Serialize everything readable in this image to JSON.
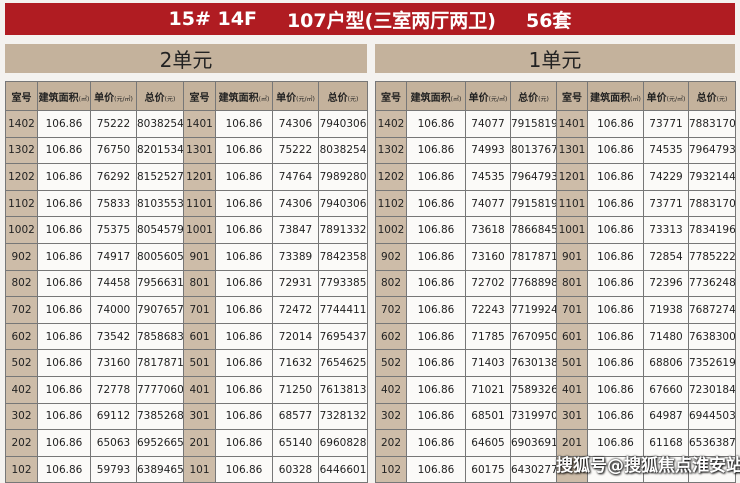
{
  "title": {
    "building": "15# 14F",
    "type": "107户型(三室两厅两卫)",
    "count": "56套"
  },
  "headers": [
    {
      "label": "室号",
      "unit": ""
    },
    {
      "label": "建筑面积",
      "unit": "(㎡)"
    },
    {
      "label": "单价",
      "unit": "(元/㎡)"
    },
    {
      "label": "总价",
      "unit": "(元)"
    }
  ],
  "units": [
    {
      "name": "2单元",
      "rows": [
        [
          "1402",
          "106.86",
          "75222",
          "8038254",
          "1401",
          "106.86",
          "74306",
          "7940306"
        ],
        [
          "1302",
          "106.86",
          "76750",
          "8201534",
          "1301",
          "106.86",
          "75222",
          "8038254"
        ],
        [
          "1202",
          "106.86",
          "76292",
          "8152527",
          "1201",
          "106.86",
          "74764",
          "7989280"
        ],
        [
          "1102",
          "106.86",
          "75833",
          "8103553",
          "1101",
          "106.86",
          "74306",
          "7940306"
        ],
        [
          "1002",
          "106.86",
          "75375",
          "8054579",
          "1001",
          "106.86",
          "73847",
          "7891332"
        ],
        [
          "902",
          "106.86",
          "74917",
          "8005605",
          "901",
          "106.86",
          "73389",
          "7842358"
        ],
        [
          "802",
          "106.86",
          "74458",
          "7956631",
          "801",
          "106.86",
          "72931",
          "7793385"
        ],
        [
          "702",
          "106.86",
          "74000",
          "7907657",
          "701",
          "106.86",
          "72472",
          "7744411"
        ],
        [
          "602",
          "106.86",
          "73542",
          "7858683",
          "601",
          "106.86",
          "72014",
          "7695437"
        ],
        [
          "502",
          "106.86",
          "73160",
          "7817871",
          "501",
          "106.86",
          "71632",
          "7654625"
        ],
        [
          "402",
          "106.86",
          "72778",
          "7777060",
          "401",
          "106.86",
          "71250",
          "7613813"
        ],
        [
          "302",
          "106.86",
          "69112",
          "7385268",
          "301",
          "106.86",
          "68577",
          "7328132"
        ],
        [
          "202",
          "106.86",
          "65063",
          "6952665",
          "201",
          "106.86",
          "65140",
          "6960828"
        ],
        [
          "102",
          "106.86",
          "59793",
          "6389465",
          "101",
          "106.86",
          "60328",
          "6446601"
        ]
      ]
    },
    {
      "name": "1单元",
      "rows": [
        [
          "1402",
          "106.86",
          "74077",
          "7915819",
          "1401",
          "106.86",
          "73771",
          "7883170"
        ],
        [
          "1302",
          "106.86",
          "74993",
          "8013767",
          "1301",
          "106.86",
          "74535",
          "7964793"
        ],
        [
          "1202",
          "106.86",
          "74535",
          "7964793",
          "1201",
          "106.86",
          "74229",
          "7932144"
        ],
        [
          "1102",
          "106.86",
          "74077",
          "7915819",
          "1101",
          "106.86",
          "73771",
          "7883170"
        ],
        [
          "1002",
          "106.86",
          "73618",
          "7866845",
          "1001",
          "106.86",
          "73313",
          "7834196"
        ],
        [
          "902",
          "106.86",
          "73160",
          "7817871",
          "901",
          "106.86",
          "72854",
          "7785222"
        ],
        [
          "802",
          "106.86",
          "72702",
          "7768898",
          "801",
          "106.86",
          "72396",
          "7736248"
        ],
        [
          "702",
          "106.86",
          "72243",
          "7719924",
          "701",
          "106.86",
          "71938",
          "7687274"
        ],
        [
          "602",
          "106.86",
          "71785",
          "7670950",
          "601",
          "106.86",
          "71480",
          "7638300"
        ],
        [
          "502",
          "106.86",
          "71403",
          "7630138",
          "501",
          "106.86",
          "68806",
          "7352619"
        ],
        [
          "402",
          "106.86",
          "71021",
          "7589326",
          "401",
          "106.86",
          "67660",
          "7230184"
        ],
        [
          "302",
          "106.86",
          "68501",
          "7319970",
          "301",
          "106.86",
          "64987",
          "6944503"
        ],
        [
          "202",
          "106.86",
          "64605",
          "6903691",
          "201",
          "106.86",
          "61168",
          "6536387"
        ],
        [
          "102",
          "106.86",
          "60175",
          "6430277",
          "",
          "",
          "",
          ""
        ]
      ]
    }
  ],
  "watermark": "搜狐号@搜狐焦点淮安站"
}
